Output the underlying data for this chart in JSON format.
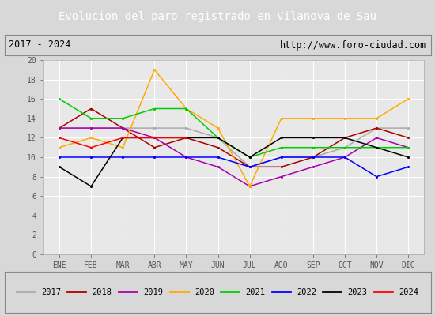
{
  "title": "Evolucion del paro registrado en Vilanova de Sau",
  "subtitle_left": "2017 - 2024",
  "subtitle_right": "http://www.foro-ciudad.com",
  "months": [
    "ENE",
    "FEB",
    "MAR",
    "ABR",
    "MAY",
    "JUN",
    "JUL",
    "AGO",
    "SEP",
    "OCT",
    "NOV",
    "DIC"
  ],
  "ylim": [
    0,
    20
  ],
  "yticks": [
    0,
    2,
    4,
    6,
    8,
    10,
    12,
    14,
    16,
    18,
    20
  ],
  "series": {
    "2017": [
      13,
      13,
      13,
      13,
      13,
      12,
      9,
      10,
      10,
      11,
      13,
      13
    ],
    "2018": [
      13,
      15,
      13,
      11,
      12,
      11,
      9,
      9,
      10,
      12,
      13,
      12
    ],
    "2019": [
      13,
      13,
      13,
      12,
      10,
      9,
      7,
      8,
      9,
      10,
      12,
      11
    ],
    "2020": [
      11,
      12,
      11,
      19,
      15,
      13,
      7,
      14,
      14,
      14,
      14,
      16
    ],
    "2021": [
      16,
      14,
      14,
      15,
      15,
      12,
      10,
      11,
      11,
      11,
      11,
      11
    ],
    "2022": [
      10,
      10,
      10,
      10,
      10,
      10,
      9,
      10,
      10,
      10,
      8,
      9
    ],
    "2023": [
      9,
      7,
      12,
      12,
      12,
      12,
      10,
      12,
      12,
      12,
      11,
      10
    ],
    "2024": [
      12,
      11,
      12,
      12,
      12,
      null,
      null,
      null,
      null,
      null,
      null,
      null
    ]
  },
  "colors": {
    "2017": "#aaaaaa",
    "2018": "#aa0000",
    "2019": "#aa00aa",
    "2020": "#ffaa00",
    "2021": "#00cc00",
    "2022": "#0000ff",
    "2023": "#000000",
    "2024": "#ff0000"
  },
  "title_bg": "#4d8cc4",
  "title_color": "white",
  "subtitle_bg": "#d8d8d8",
  "plot_bg": "#e8e8e8",
  "grid_color": "white",
  "legend_border_color": "#aaaaaa"
}
